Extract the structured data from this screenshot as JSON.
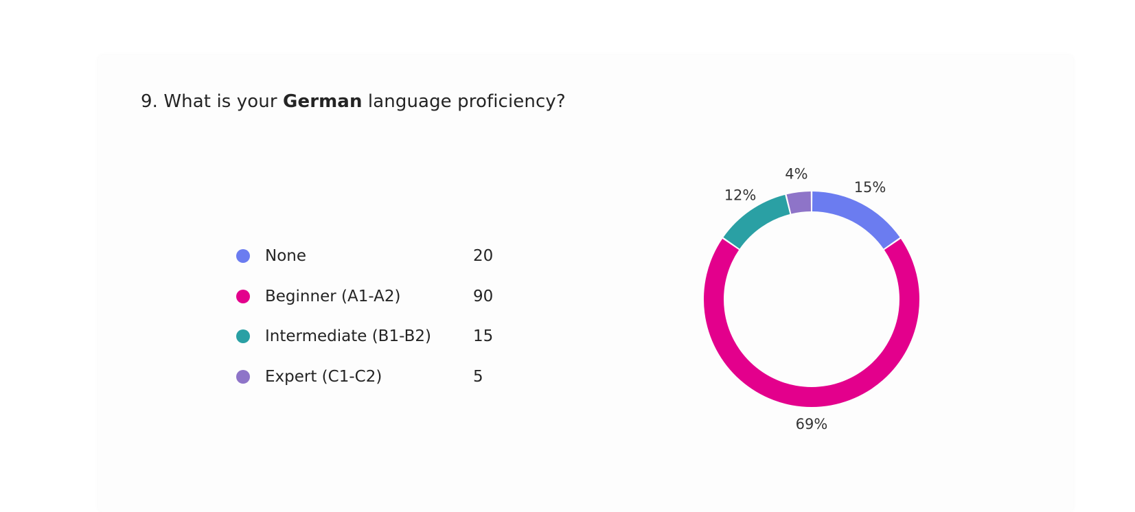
{
  "question": {
    "number_prefix": "9. What is your ",
    "bold_word": "German",
    "suffix": " language proficiency?"
  },
  "legend": [
    {
      "label": "None",
      "count": "20",
      "color": "#6b7cf0"
    },
    {
      "label": "Beginner (A1-A2)",
      "count": "90",
      "color": "#e3008c"
    },
    {
      "label": "Intermediate (B1-B2)",
      "count": "15",
      "color": "#2aa0a4"
    },
    {
      "label": "Expert (C1-C2)",
      "count": "5",
      "color": "#8e74c8"
    }
  ],
  "chart_data": {
    "type": "pie",
    "subtype": "donut",
    "title": "9. What is your German language proficiency?",
    "categories": [
      "None",
      "Beginner (A1-A2)",
      "Intermediate (B1-B2)",
      "Expert (C1-C2)"
    ],
    "values": [
      20,
      90,
      15,
      5
    ],
    "percent_labels": [
      "15%",
      "69%",
      "12%",
      "4%"
    ],
    "colors": [
      "#6b7cf0",
      "#e3008c",
      "#2aa0a4",
      "#8e74c8"
    ],
    "legend_position": "left"
  }
}
